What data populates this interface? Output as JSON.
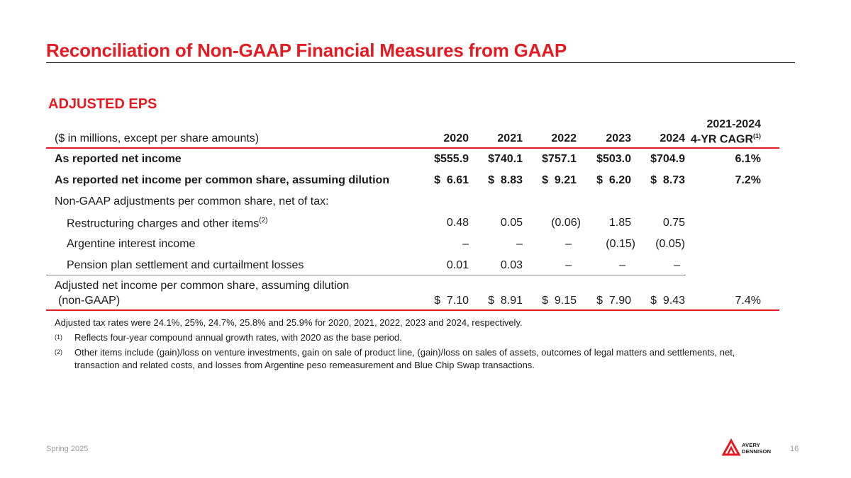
{
  "title": "Reconciliation of Non-GAAP Financial Measures from GAAP",
  "section_title": "ADJUSTED EPS",
  "table": {
    "caption": "($ in millions, except per share amounts)",
    "years": [
      "2020",
      "2021",
      "2022",
      "2023",
      "2024"
    ],
    "cagr_header": {
      "line1": "2021-2024",
      "line2": "4-YR CAGR",
      "note": "(1)"
    },
    "rows": [
      {
        "label": "As reported net income",
        "values": [
          "$555.9",
          "$740.1",
          "$757.1",
          "$503.0",
          "$704.9"
        ],
        "cagr": "6.1%"
      },
      {
        "label": "As reported net income per common share, assuming dilution",
        "values": [
          "$  6.61",
          "$  8.83",
          "$  9.21",
          "$  6.20",
          "$  8.73"
        ],
        "cagr": "7.2%"
      },
      {
        "label": "Non-GAAP adjustments per common share, net of tax:"
      },
      {
        "label": "Restructuring charges and other items",
        "note": "(2)",
        "values": [
          "0.48",
          "0.05",
          "(0.06)",
          "1.85",
          "0.75"
        ]
      },
      {
        "label": "Argentine interest income",
        "values": [
          "–",
          "–",
          "–",
          "(0.15)",
          "(0.05)"
        ]
      },
      {
        "label": "Pension plan settlement and curtailment losses",
        "values": [
          "0.01",
          "0.03",
          "–",
          "–",
          "–"
        ]
      },
      {
        "label": "Adjusted net income per common share, assuming dilution",
        "label2": "(non-GAAP)",
        "values": [
          "$  7.10",
          "$  8.91",
          "$  9.15",
          "$  7.90",
          "$  9.43"
        ],
        "cagr": "7.4%"
      }
    ]
  },
  "notes": {
    "tax": "Adjusted tax rates were 24.1%, 25%, 24.7%, 25.8% and 25.9% for 2020, 2021, 2022, 2023 and 2024, respectively.",
    "n1_marker": "(1)",
    "n1": "Reflects four-year compound annual growth rates, with 2020 as the base period.",
    "n2_marker": "(2)",
    "n2_line1": "Other items include (gain)/loss on venture investments, gain on sale of product line, (gain)/loss on sales of assets, outcomes of legal matters and settlements, net,",
    "n2_line2": "transaction and related costs, and losses from Argentine peso remeasurement and Blue Chip Swap transactions."
  },
  "footer": {
    "left": "Spring 2025",
    "page": "16",
    "logo_line1": "AVERY",
    "logo_line2": "DENNISON"
  },
  "colors": {
    "accent": "#e31b23",
    "text": "#1a1a1a",
    "muted": "#9b9b9b"
  }
}
